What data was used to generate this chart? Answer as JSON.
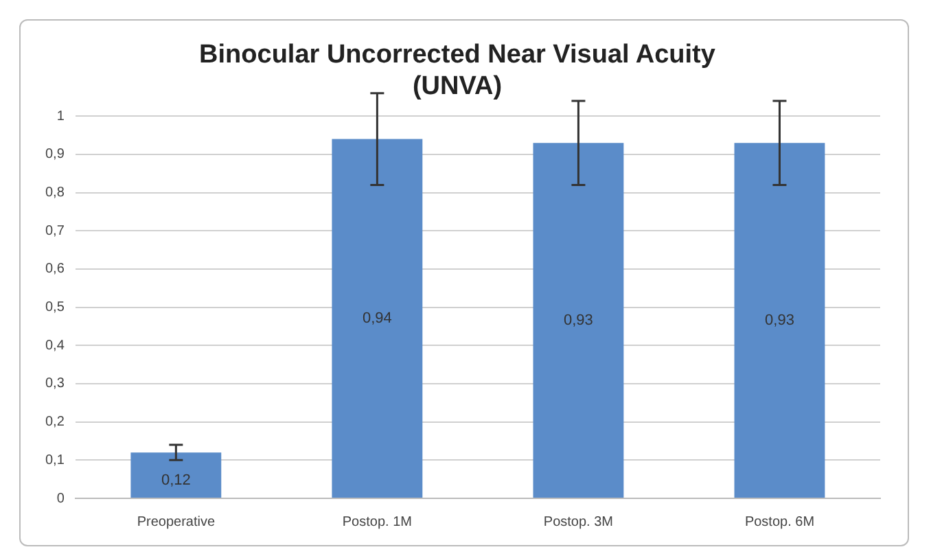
{
  "chart_data": {
    "type": "bar",
    "title": "Binocular Uncorrected Near Visual Acuity\n(UNVA)",
    "categories": [
      "Preoperative",
      "Postop. 1M",
      "Postop. 3M",
      "Postop. 6M"
    ],
    "values": [
      0.12,
      0.94,
      0.93,
      0.93
    ],
    "errors": [
      0.02,
      0.12,
      0.11,
      0.11
    ],
    "value_labels": [
      "0,12",
      "0,94",
      "0,93",
      "0,93"
    ],
    "color": "#5b8cc9",
    "ylim": [
      0,
      1
    ],
    "yticks": [
      0,
      {
        "value": 0.1,
        "label": "0,1"
      },
      {
        "value": 0.2,
        "label": "0,2"
      },
      {
        "value": 0.3,
        "label": "0,3"
      },
      {
        "value": 0.4,
        "label": "0,4"
      },
      {
        "value": 0.5,
        "label": "0,5"
      },
      {
        "value": 0.6,
        "label": "0,6"
      },
      {
        "value": 0.7,
        "label": "0,7"
      },
      {
        "value": 0.8,
        "label": "0,8"
      },
      {
        "value": 0.9,
        "label": "0,9"
      },
      1
    ],
    "grid": "y",
    "legend": false
  }
}
